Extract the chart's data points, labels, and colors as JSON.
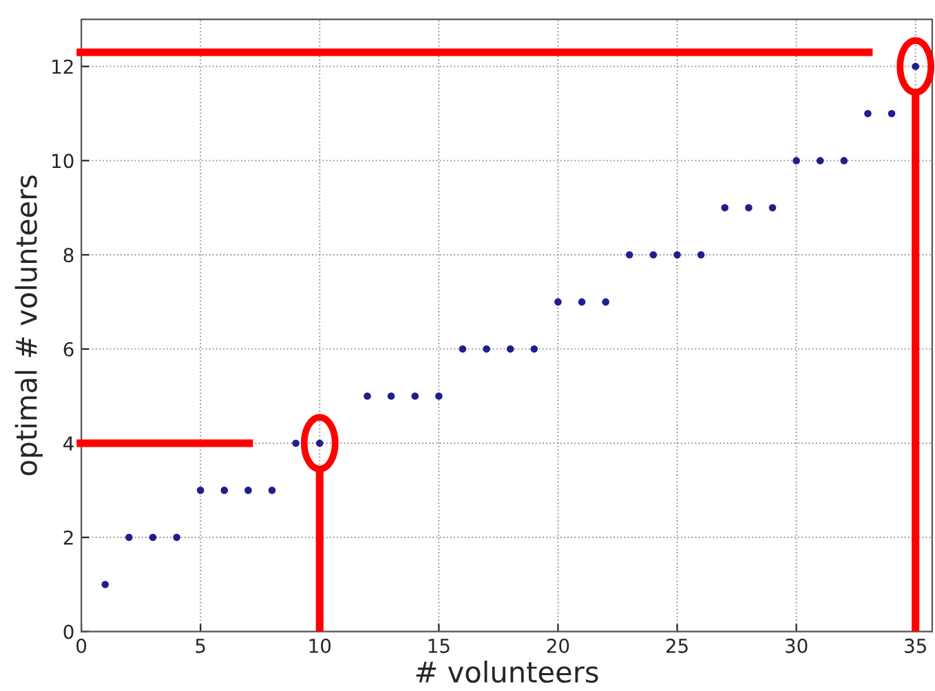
{
  "chart_data": {
    "type": "scatter",
    "xlabel": "# volunteers",
    "ylabel": "optimal # volunteers",
    "x": [
      1,
      2,
      3,
      4,
      5,
      6,
      7,
      8,
      9,
      10,
      12,
      13,
      14,
      15,
      16,
      17,
      18,
      19,
      20,
      21,
      22,
      23,
      24,
      25,
      26,
      27,
      28,
      29,
      30,
      31,
      32,
      33,
      34,
      35
    ],
    "series": [
      {
        "color": "#1f1f8f",
        "values": [
          1,
          2,
          2,
          2,
          3,
          3,
          3,
          3,
          4,
          4,
          5,
          5,
          5,
          5,
          6,
          6,
          6,
          6,
          7,
          7,
          7,
          8,
          8,
          8,
          8,
          9,
          9,
          9,
          10,
          10,
          10,
          11,
          11,
          12
        ]
      }
    ],
    "xlim": [
      0,
      35.7
    ],
    "ylim": [
      0,
      13
    ],
    "xticks": [
      0,
      5,
      10,
      15,
      20,
      25,
      30,
      35
    ],
    "yticks": [
      0,
      2,
      4,
      6,
      8,
      10,
      12
    ],
    "grid": true,
    "marker": "circle",
    "ref_lines": [
      {
        "axis": "y",
        "value": 4,
        "color": "#ff0000"
      },
      {
        "axis": "x",
        "value": 10,
        "color": "#ff0000"
      },
      {
        "axis": "y",
        "value": 12.3,
        "color": "#ff0000"
      },
      {
        "axis": "x",
        "value": 35,
        "color": "#ff0000"
      }
    ]
  }
}
